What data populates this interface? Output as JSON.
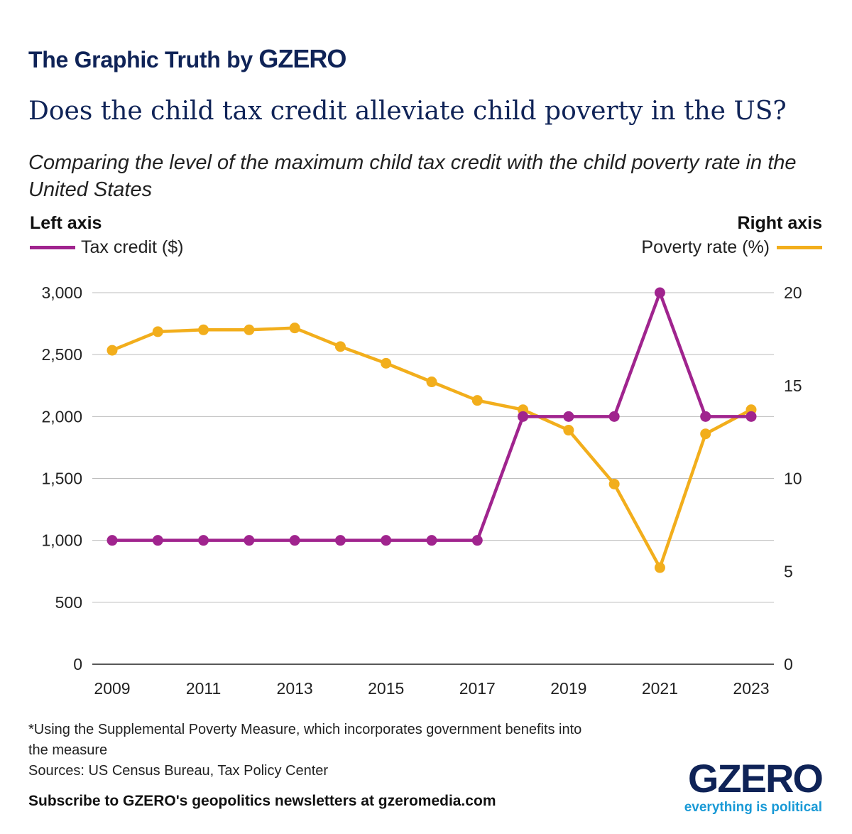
{
  "header": {
    "brand_prefix": "The Graphic Truth by ",
    "brand_name": "GZERO"
  },
  "chart_data": {
    "type": "line",
    "title": "Does the child tax credit alleviate child poverty in the US?",
    "subtitle": "Comparing the level of the maximum child tax credit with the child poverty rate in the United States",
    "left_axis_label": "Left axis",
    "right_axis_label": "Right axis",
    "x": [
      2009,
      2010,
      2011,
      2012,
      2013,
      2014,
      2015,
      2016,
      2017,
      2018,
      2019,
      2020,
      2021,
      2022,
      2023
    ],
    "x_tick_labels": [
      "2009",
      "2011",
      "2013",
      "2015",
      "2017",
      "2019",
      "2021",
      "2023"
    ],
    "left_ylim": [
      0,
      3000
    ],
    "left_ticks": [
      "0",
      "500",
      "1,000",
      "1,500",
      "2,000",
      "2,500",
      "3,000"
    ],
    "right_ylim": [
      0,
      20
    ],
    "right_ticks": [
      "0",
      "5",
      "10",
      "15",
      "20"
    ],
    "grid": true,
    "series": [
      {
        "name": "Tax credit ($)",
        "axis": "left",
        "color": "#a0248e",
        "values": [
          1000,
          1000,
          1000,
          1000,
          1000,
          1000,
          1000,
          1000,
          1000,
          2000,
          2000,
          2000,
          3000,
          2000,
          2000
        ]
      },
      {
        "name": "Poverty rate (%)",
        "axis": "right",
        "color": "#f2ae1c",
        "values": [
          16.9,
          17.9,
          18.0,
          18.0,
          18.1,
          17.1,
          16.2,
          15.2,
          14.2,
          13.7,
          12.6,
          9.7,
          5.2,
          12.4,
          13.7
        ]
      }
    ]
  },
  "footer": {
    "note": "*Using the Supplemental Poverty Measure, which incorporates government benefits into the measure",
    "sources": "Sources: US Census Bureau, Tax Policy Center",
    "subscribe": "Subscribe to GZERO's geopolitics newsletters at gzeromedia.com",
    "logo_word": "GZERO",
    "logo_tagline": "everything is political"
  }
}
